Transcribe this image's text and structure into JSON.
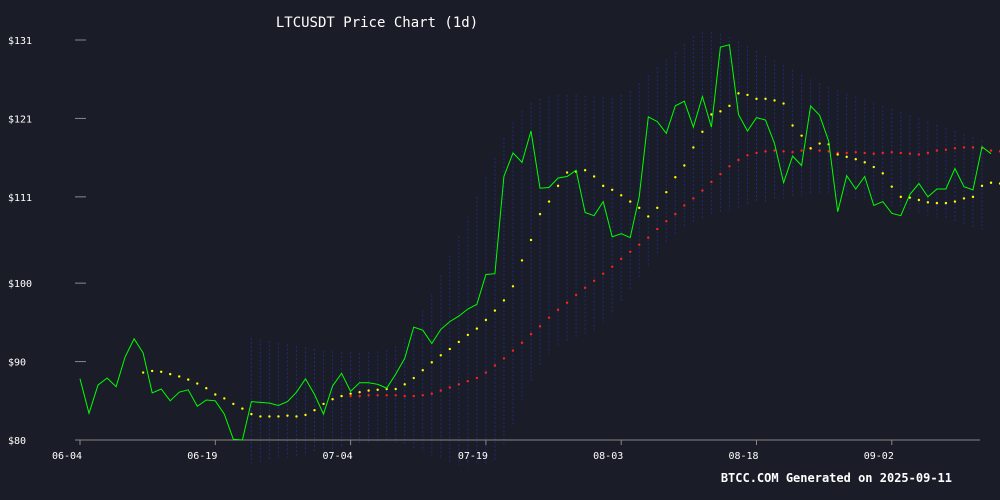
{
  "chart_data": {
    "type": "line",
    "title": "LTCUSDT Price Chart (1d)",
    "footer": "BTCC.COM Generated on 2025-09-11",
    "xlabel": "",
    "ylabel": "",
    "ylim": [
      80,
      131
    ],
    "y_ticks": [
      {
        "value": 80,
        "label": "$80"
      },
      {
        "value": 90,
        "label": "$90"
      },
      {
        "value": 100,
        "label": "$100"
      },
      {
        "value": 111,
        "label": "$111"
      },
      {
        "value": 121,
        "label": "$121"
      },
      {
        "value": 131,
        "label": "$131"
      }
    ],
    "x_ticks": [
      {
        "index": 0,
        "label": "06-04"
      },
      {
        "index": 15,
        "label": "06-19"
      },
      {
        "index": 30,
        "label": "07-04"
      },
      {
        "index": 45,
        "label": "07-19"
      },
      {
        "index": 60,
        "label": "08-03"
      },
      {
        "index": 75,
        "label": "08-18"
      },
      {
        "index": 90,
        "label": "09-02"
      }
    ],
    "colors": {
      "background": "#1a1d27",
      "price": "#00ff00",
      "ma_short": "#ffff00",
      "ma_long": "#ff2020",
      "band": "#1e2a7a",
      "axis": "#888888"
    },
    "series": [
      {
        "key": "price",
        "start_index": 0,
        "values": [
          87.8,
          83.4,
          87.0,
          87.9,
          86.8,
          90.6,
          92.9,
          91.1,
          86.0,
          86.5,
          85.0,
          86.1,
          86.4,
          84.3,
          85.1,
          85.0,
          83.3,
          80.1,
          80.0,
          84.9,
          84.8,
          84.7,
          84.4,
          84.9,
          86.1,
          87.8,
          85.8,
          83.3,
          86.9,
          88.5,
          86.2,
          87.3,
          87.3,
          87.1,
          86.6,
          88.4,
          90.4,
          94.4,
          94.0,
          92.3,
          94.1,
          95.1,
          95.8,
          96.7,
          97.3,
          101.1,
          101.2,
          113.6,
          116.6,
          115.4,
          119.4,
          112.1,
          112.2,
          113.4,
          113.6,
          114.4,
          109.0,
          108.6,
          110.4,
          105.9,
          106.3,
          105.8,
          111.0,
          121.2,
          120.6,
          119.1,
          122.6,
          123.2,
          119.9,
          123.8,
          119.9,
          130.1,
          130.4,
          121.5,
          119.4,
          121.1,
          120.8,
          117.8,
          112.8,
          116.2,
          115.0,
          122.6,
          121.4,
          118.1,
          109.1,
          113.7,
          112.0,
          113.6,
          109.9,
          110.4,
          108.9,
          108.6,
          111.3,
          112.7,
          111.0,
          112.0,
          112.0,
          114.6,
          112.3,
          111.9,
          117.4,
          116.5
        ]
      },
      {
        "key": "ma_short",
        "start_index": 7,
        "values": [
          88.6,
          88.8,
          88.7,
          88.4,
          88.1,
          87.7,
          87.2,
          86.6,
          85.8,
          85.3,
          84.6,
          84.0,
          83.3,
          83.0,
          83.0,
          83.0,
          83.1,
          83.0,
          83.2,
          83.8,
          84.6,
          85.2,
          85.6,
          85.9,
          86.1,
          86.3,
          86.4,
          86.5,
          86.5,
          87.1,
          87.9,
          88.9,
          89.9,
          90.8,
          91.6,
          92.5,
          93.4,
          94.2,
          95.3,
          96.5,
          97.8,
          99.6,
          102.9,
          105.5,
          108.8,
          110.4,
          112.4,
          114.1,
          114.2,
          114.4,
          113.6,
          112.4,
          111.9,
          111.2,
          110.4,
          109.6,
          108.5,
          109.6,
          111.6,
          113.5,
          115.0,
          117.3,
          119.3,
          121.5,
          121.9,
          122.6,
          124.2,
          124.0,
          123.5,
          123.5,
          123.3,
          122.9,
          120.1,
          118.8,
          117.2,
          117.8,
          117.7,
          116.4,
          116.1,
          115.8,
          115.4,
          114.8,
          114.0,
          112.3,
          111.0,
          110.9,
          110.6,
          110.3,
          110.2,
          110.2,
          110.4,
          110.8,
          111.0,
          112.4,
          112.8,
          112.7,
          113.4,
          113.7
        ]
      },
      {
        "key": "ma_long",
        "start_index": 30,
        "values": [
          85.6,
          85.6,
          85.7,
          85.7,
          85.7,
          85.7,
          85.6,
          85.6,
          85.7,
          85.9,
          86.3,
          86.7,
          87.1,
          87.5,
          87.9,
          88.6,
          89.5,
          90.4,
          91.4,
          92.4,
          93.5,
          94.5,
          95.6,
          96.6,
          97.5,
          98.5,
          99.4,
          100.3,
          101.2,
          102.1,
          103.1,
          104.0,
          104.9,
          105.8,
          106.9,
          107.9,
          108.8,
          109.9,
          110.8,
          111.8,
          112.9,
          113.9,
          114.9,
          115.7,
          116.3,
          116.6,
          116.8,
          116.9,
          116.8,
          116.7,
          116.9,
          117.1,
          116.9,
          116.8,
          116.6,
          116.6,
          116.7,
          116.6,
          116.5,
          116.6,
          116.7,
          116.6,
          116.5,
          116.4,
          116.6,
          116.9,
          117.0,
          117.2,
          117.3,
          117.3,
          117.2,
          116.9,
          116.8,
          116.6,
          116.3,
          116.0,
          115.6
        ]
      },
      {
        "key": "bollinger",
        "start_index": 19,
        "upper": [
          93.0,
          92.8,
          92.6,
          92.4,
          92.2,
          92.0,
          91.8,
          91.6,
          91.4,
          91.3,
          91.2,
          91.2,
          91.1,
          91.2,
          91.3,
          91.5,
          92.0,
          93.0,
          94.5,
          96.5,
          98.5,
          101.0,
          103.5,
          106.0,
          108.5,
          111.0,
          113.5,
          116.0,
          118.5,
          120.5,
          122.0,
          123.0,
          123.5,
          123.8,
          124.0,
          124.0,
          124.0,
          123.9,
          123.8,
          123.7,
          123.6,
          124.0,
          124.5,
          125.5,
          126.5,
          127.5,
          128.5,
          129.5,
          130.5,
          131.5,
          132.0,
          132.0,
          131.8,
          131.4,
          130.8,
          130.2,
          129.6,
          129.0,
          128.4,
          127.8,
          127.2,
          126.6,
          126.0,
          125.5,
          125.0,
          124.6,
          124.2,
          123.8,
          123.4,
          123.0,
          122.6,
          122.2,
          121.8,
          121.4,
          121.0,
          120.6,
          120.2,
          119.8,
          119.4,
          119.0,
          118.6,
          118.2
        ],
        "lower": [
          77.0,
          77.2,
          77.4,
          77.6,
          77.8,
          78.0,
          78.2,
          78.4,
          78.6,
          78.8,
          79.0,
          79.2,
          79.4,
          79.5,
          79.6,
          79.7,
          79.6,
          79.4,
          79.0,
          78.5,
          78.0,
          77.5,
          77.0,
          76.8,
          76.5,
          76.5,
          76.5,
          77.5,
          79.5,
          82.0,
          85.0,
          87.5,
          89.5,
          91.0,
          92.0,
          92.5,
          93.0,
          93.5,
          94.0,
          95.0,
          96.0,
          97.5,
          99.0,
          100.5,
          102.0,
          103.5,
          105.0,
          106.0,
          107.0,
          107.5,
          108.0,
          108.5,
          109.0,
          109.3,
          109.6,
          109.9,
          110.2,
          110.4,
          110.6,
          110.8,
          111.0,
          111.1,
          111.2,
          111.2,
          111.2,
          111.1,
          111.0,
          110.8,
          110.6,
          110.4,
          110.1,
          109.8,
          109.5,
          109.2,
          108.9,
          108.6,
          108.3,
          108.0,
          107.7,
          107.4,
          107.1,
          106.8
        ]
      }
    ],
    "grid": false,
    "legend": "none"
  }
}
